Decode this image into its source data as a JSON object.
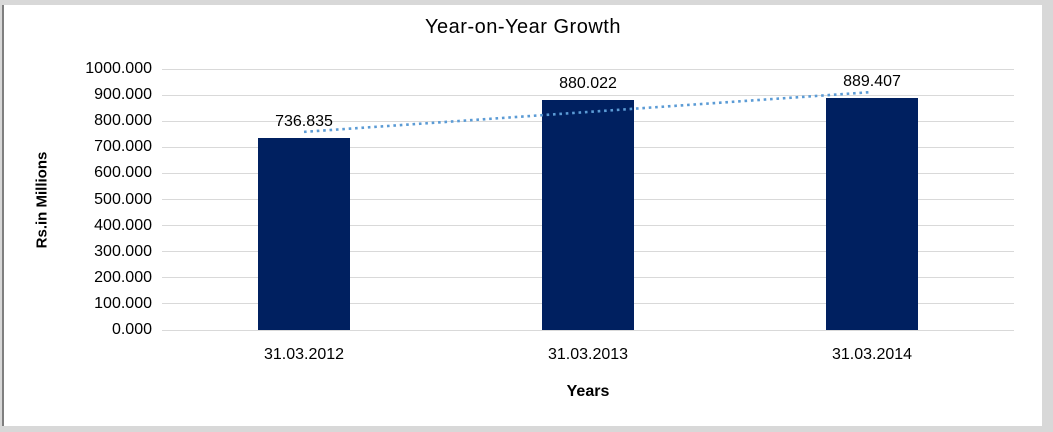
{
  "frame": {
    "outer_background": "#d8d8d8",
    "panel_background": "#ffffff",
    "left_border_color": "#7f7f7f"
  },
  "chart_data": {
    "type": "bar",
    "title": "Year-on-Year Growth",
    "xlabel": "Years",
    "ylabel": "Rs.in Millions",
    "categories": [
      "31.03.2012",
      "31.03.2013",
      "31.03.2014"
    ],
    "values": [
      736.835,
      880.022,
      889.407
    ],
    "data_labels": [
      "736.835",
      "880.022",
      "889.407"
    ],
    "ylim": [
      0,
      1000
    ],
    "y_ticks": [
      "0.000",
      "100.000",
      "200.000",
      "300.000",
      "400.000",
      "500.000",
      "600.000",
      "700.000",
      "800.000",
      "900.000",
      "1000.000"
    ],
    "grid": true,
    "legend": "none",
    "bar_color": "#002060",
    "gridline_color": "#d9d9d9",
    "trendline": {
      "type": "linear",
      "style": "dotted",
      "color": "#5b9bd5"
    }
  }
}
